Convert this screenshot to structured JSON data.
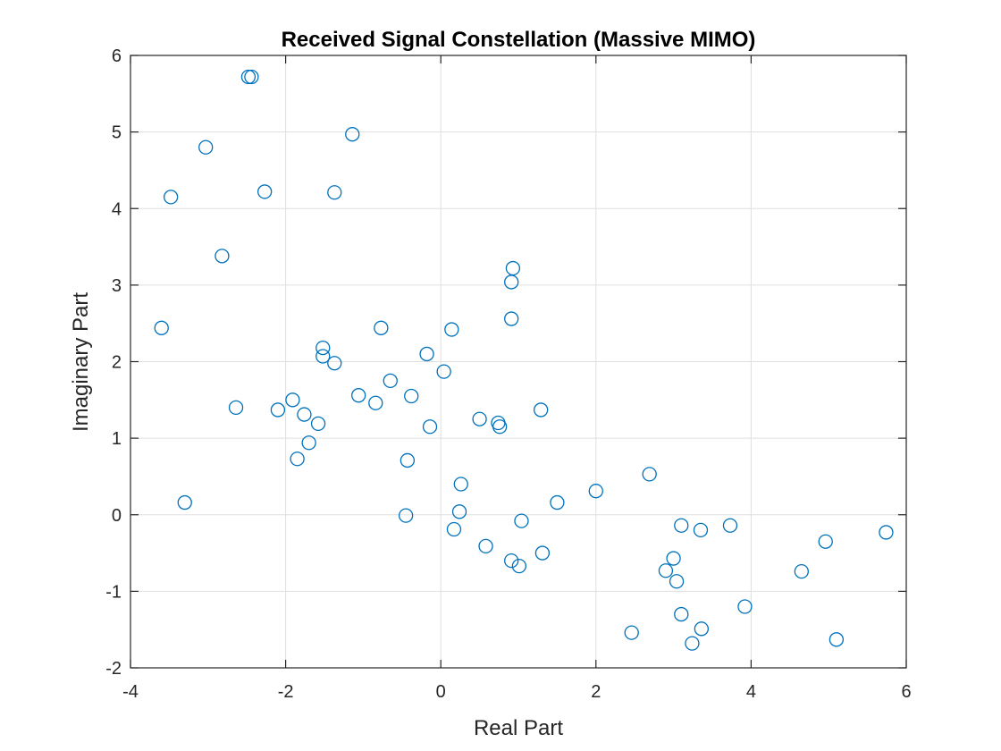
{
  "chart_data": {
    "type": "scatter",
    "title": "Received Signal Constellation (Massive MIMO)",
    "xlabel": "Real Part",
    "ylabel": "Imaginary Part",
    "xlim": [
      -4,
      6
    ],
    "ylim": [
      -2,
      6
    ],
    "xticks": [
      -4,
      -2,
      0,
      2,
      4,
      6
    ],
    "yticks": [
      -2,
      -1,
      0,
      1,
      2,
      3,
      4,
      5,
      6
    ],
    "grid": true,
    "marker": "open-circle",
    "marker_color": "#0072BD",
    "series": [
      {
        "points": [
          [
            -2.48,
            5.72
          ],
          [
            -2.44,
            5.72
          ],
          [
            -1.14,
            4.97
          ],
          [
            -3.03,
            4.8
          ],
          [
            -3.48,
            4.15
          ],
          [
            -2.27,
            4.22
          ],
          [
            -1.37,
            4.21
          ],
          [
            -2.82,
            3.38
          ],
          [
            -3.6,
            2.44
          ],
          [
            0.93,
            3.22
          ],
          [
            0.91,
            3.04
          ],
          [
            0.91,
            2.56
          ],
          [
            -0.77,
            2.44
          ],
          [
            0.14,
            2.42
          ],
          [
            -1.52,
            2.18
          ],
          [
            -1.52,
            2.07
          ],
          [
            -1.37,
            1.98
          ],
          [
            -0.18,
            2.1
          ],
          [
            0.04,
            1.87
          ],
          [
            -0.65,
            1.75
          ],
          [
            -1.06,
            1.56
          ],
          [
            -0.38,
            1.55
          ],
          [
            -0.84,
            1.46
          ],
          [
            -1.91,
            1.5
          ],
          [
            -2.64,
            1.4
          ],
          [
            -2.1,
            1.37
          ],
          [
            -1.76,
            1.31
          ],
          [
            -1.58,
            1.19
          ],
          [
            -1.7,
            0.94
          ],
          [
            -1.85,
            0.73
          ],
          [
            -0.14,
            1.15
          ],
          [
            0.5,
            1.25
          ],
          [
            0.74,
            1.2
          ],
          [
            0.76,
            1.15
          ],
          [
            1.29,
            1.37
          ],
          [
            -0.43,
            0.71
          ],
          [
            0.26,
            0.4
          ],
          [
            -3.3,
            0.16
          ],
          [
            -0.45,
            -0.01
          ],
          [
            0.24,
            0.04
          ],
          [
            0.17,
            -0.19
          ],
          [
            0.58,
            -0.41
          ],
          [
            1.04,
            -0.08
          ],
          [
            0.91,
            -0.6
          ],
          [
            1.01,
            -0.67
          ],
          [
            1.31,
            -0.5
          ],
          [
            1.5,
            0.16
          ],
          [
            2.0,
            0.31
          ],
          [
            2.69,
            0.53
          ],
          [
            3.1,
            -0.14
          ],
          [
            3.35,
            -0.2
          ],
          [
            3.73,
            -0.14
          ],
          [
            3.0,
            -0.57
          ],
          [
            2.9,
            -0.73
          ],
          [
            3.04,
            -0.87
          ],
          [
            4.96,
            -0.35
          ],
          [
            5.74,
            -0.23
          ],
          [
            4.65,
            -0.74
          ],
          [
            3.1,
            -1.3
          ],
          [
            3.92,
            -1.2
          ],
          [
            2.46,
            -1.54
          ],
          [
            3.36,
            -1.49
          ],
          [
            3.24,
            -1.68
          ],
          [
            5.1,
            -1.63
          ]
        ]
      }
    ]
  }
}
